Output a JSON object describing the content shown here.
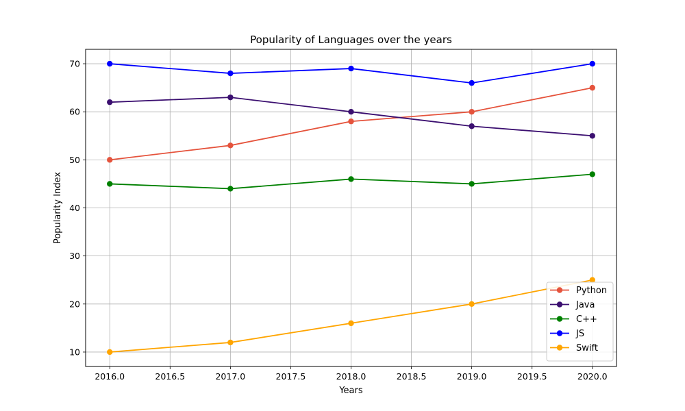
{
  "chart_data": {
    "type": "line",
    "title": "Popularity of Languages over the years",
    "xlabel": "Years",
    "ylabel": "Popularity Index",
    "x": [
      2016,
      2017,
      2018,
      2019,
      2020
    ],
    "xlim": [
      2015.8,
      2020.2
    ],
    "ylim": [
      7,
      73
    ],
    "xticks": [
      2016.0,
      2016.5,
      2017.0,
      2017.5,
      2018.0,
      2018.5,
      2019.0,
      2019.5,
      2020.0
    ],
    "xtick_labels": [
      "2016.0",
      "2016.5",
      "2017.0",
      "2017.5",
      "2018.0",
      "2018.5",
      "2019.0",
      "2019.5",
      "2020.0"
    ],
    "yticks": [
      10,
      20,
      30,
      40,
      50,
      60,
      70
    ],
    "ytick_labels": [
      "10",
      "20",
      "30",
      "40",
      "50",
      "60",
      "70"
    ],
    "grid": true,
    "legend_position": "bottom-right",
    "series": [
      {
        "name": "Python",
        "color": "#e5533c",
        "values": [
          50,
          53,
          58,
          60,
          65
        ]
      },
      {
        "name": "Java",
        "color": "#3b0f70",
        "values": [
          62,
          63,
          60,
          57,
          55
        ]
      },
      {
        "name": "C++",
        "color": "#008000",
        "values": [
          45,
          44,
          46,
          45,
          47
        ]
      },
      {
        "name": "JS",
        "color": "#0000ff",
        "values": [
          70,
          68,
          69,
          66,
          70
        ]
      },
      {
        "name": "Swift",
        "color": "#ffa500",
        "values": [
          10,
          12,
          16,
          20,
          25
        ]
      }
    ]
  }
}
